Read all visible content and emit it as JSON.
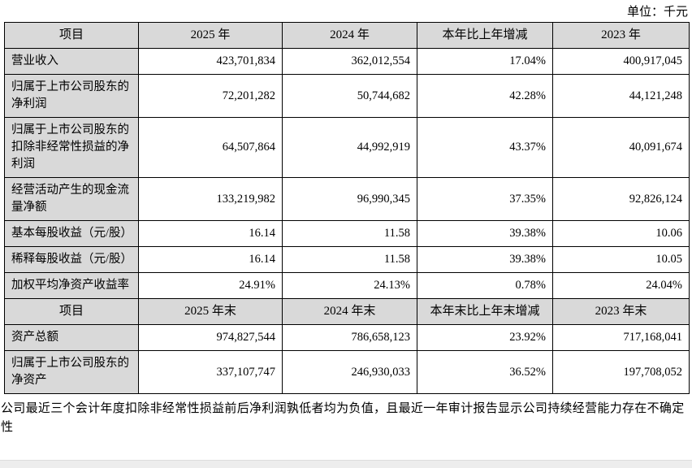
{
  "page": {
    "unit_label": "单位：千元",
    "note": "公司最近三个会计年度扣除非经常性损益前后净利润孰低者均为负值，且最近一年审计报告显示公司持续经营能力存在不确定性"
  },
  "colors": {
    "header_bg": "#d9d9d9",
    "label_bg": "#d9d9d9",
    "border": "#000000"
  },
  "table": {
    "rows": [
      {
        "type": "header",
        "cells": [
          "项目",
          "2025 年",
          "2024 年",
          "本年比上年增减",
          "2023 年"
        ]
      },
      {
        "type": "data",
        "cells": [
          "营业收入",
          "423,701,834",
          "362,012,554",
          "17.04%",
          "400,917,045"
        ]
      },
      {
        "type": "data",
        "cells": [
          "归属于上市公司股东的净利润",
          "72,201,282",
          "50,744,682",
          "42.28%",
          "44,121,248"
        ]
      },
      {
        "type": "data",
        "cells": [
          "归属于上市公司股东的扣除非经常性损益的净利润",
          "64,507,864",
          "44,992,919",
          "43.37%",
          "40,091,674"
        ]
      },
      {
        "type": "data",
        "cells": [
          "经营活动产生的现金流量净额",
          "133,219,982",
          "96,990,345",
          "37.35%",
          "92,826,124"
        ]
      },
      {
        "type": "data",
        "cells": [
          "基本每股收益（元/股）",
          "16.14",
          "11.58",
          "39.38%",
          "10.06"
        ]
      },
      {
        "type": "data",
        "cells": [
          "稀释每股收益（元/股）",
          "16.14",
          "11.58",
          "39.38%",
          "10.05"
        ]
      },
      {
        "type": "data",
        "cells": [
          "加权平均净资产收益率",
          "24.91%",
          "24.13%",
          "0.78%",
          "24.04%"
        ]
      },
      {
        "type": "header",
        "cells": [
          "项目",
          "2025 年末",
          "2024 年末",
          "本年末比上年末增减",
          "2023 年末"
        ]
      },
      {
        "type": "data",
        "cells": [
          "资产总额",
          "974,827,544",
          "786,658,123",
          "23.92%",
          "717,168,041"
        ]
      },
      {
        "type": "data",
        "cells": [
          "归属于上市公司股东的净资产",
          "337,107,747",
          "246,930,033",
          "36.52%",
          "197,708,052"
        ]
      }
    ]
  }
}
